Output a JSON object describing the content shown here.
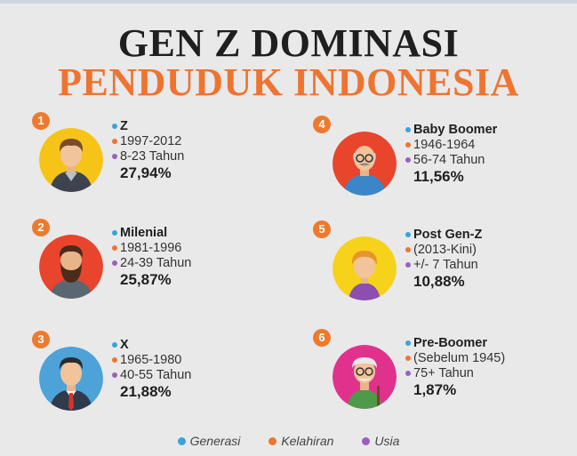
{
  "title_line1": "GEN Z DOMINASI",
  "title_line2": "PENDUDUK INDONESIA",
  "colors": {
    "accent": "#ee7430",
    "generasi": "#3aa3dc",
    "kelahiran": "#ee7430",
    "usia": "#9b5fc0"
  },
  "generations": [
    {
      "number": "1",
      "name": "Z",
      "birth": "1997-2012",
      "age": "8-23 Tahun",
      "percent": "27,94%",
      "icon": "young-man-avatar-icon"
    },
    {
      "number": "2",
      "name": "Milenial",
      "birth": "1981-1996",
      "age": "24-39 Tahun",
      "percent": "25,87%",
      "icon": "bearded-man-avatar-icon"
    },
    {
      "number": "3",
      "name": "X",
      "birth": "1965-1980",
      "age": "40-55 Tahun",
      "percent": "21,88%",
      "icon": "businessman-avatar-icon"
    },
    {
      "number": "4",
      "name": "Baby Boomer",
      "birth": "1946-1964",
      "age": "56-74 Tahun",
      "percent": "11,56%",
      "icon": "old-man-avatar-icon"
    },
    {
      "number": "5",
      "name": "Post Gen-Z",
      "birth": "(2013-Kini)",
      "age": "+/- 7 Tahun",
      "percent": "10,88%",
      "icon": "child-avatar-icon"
    },
    {
      "number": "6",
      "name": "Pre-Boomer",
      "birth": "(Sebelum 1945)",
      "age": "75+ Tahun",
      "percent": "1,87%",
      "icon": "elderly-man-avatar-icon"
    }
  ],
  "legend": {
    "generasi": "Generasi",
    "kelahiran": "Kelahiran",
    "usia": "Usia"
  }
}
